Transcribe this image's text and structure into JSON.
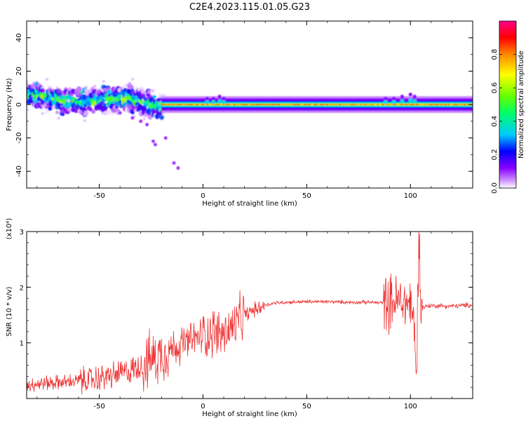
{
  "title": "C2E4.2023.115.01.05.G23",
  "chart_data": [
    {
      "type": "heatmap",
      "title": "C2E4.2023.115.01.05.G23",
      "xlabel": "Height of straight line (km)",
      "ylabel": "Frequency (Hz)",
      "xlim": [
        -85,
        130
      ],
      "ylim": [
        -50,
        50
      ],
      "x_ticks": [
        -50,
        0,
        50,
        100
      ],
      "x_tick_labels": [
        "-50",
        "0",
        "50",
        "100"
      ],
      "y_ticks": [
        -40,
        -20,
        0,
        20,
        40
      ],
      "y_tick_labels": [
        "-40",
        "-20",
        "0",
        "20",
        "40"
      ],
      "grid": false,
      "colorbar": {
        "label": "Normalized spectral amplitude",
        "range": [
          0,
          1
        ],
        "ticks": [
          0.0,
          0.2,
          0.4,
          0.6,
          0.8
        ],
        "tick_labels": [
          "0.0",
          "0.2",
          "0.4",
          "0.6",
          "0.8"
        ],
        "colormap": [
          "#ffffff",
          "#cc88ff",
          "#8800ff",
          "#0000ff",
          "#00ccff",
          "#00ff66",
          "#66ff00",
          "#ffff00",
          "#ff8800",
          "#ff0000",
          "#ff0088"
        ]
      },
      "ridge": [
        {
          "x": -85,
          "y": 6
        },
        {
          "x": -75,
          "y": 4
        },
        {
          "x": -65,
          "y": 2
        },
        {
          "x": -55,
          "y": 2
        },
        {
          "x": -45,
          "y": 3
        },
        {
          "x": -35,
          "y": 4
        },
        {
          "x": -28,
          "y": 1
        },
        {
          "x": -22,
          "y": -2
        },
        {
          "x": -20,
          "y": 0
        },
        {
          "x": 130,
          "y": 0
        }
      ]
    },
    {
      "type": "line",
      "xlabel": "Height of straight line (km)",
      "ylabel": "SNR (10 * v/v)",
      "y_exponent_label": "(x10⁴)",
      "xlim": [
        -85,
        130
      ],
      "ylim": [
        0,
        3
      ],
      "x_ticks": [
        -50,
        0,
        50,
        100
      ],
      "x_tick_labels": [
        "-50",
        "0",
        "50",
        "100"
      ],
      "y_ticks": [
        1,
        2,
        3
      ],
      "y_tick_labels": [
        "1",
        "2",
        "3"
      ],
      "grid": false,
      "color": "#ee3333",
      "series": [
        {
          "x": [
            -85,
            -75,
            -65,
            -55,
            -45,
            -35,
            -25,
            -15,
            -5,
            0,
            5,
            10,
            15,
            20,
            25,
            30,
            35,
            40,
            50,
            60,
            70,
            80,
            85,
            90,
            95,
            98,
            100,
            102,
            103,
            104,
            105,
            106,
            110,
            120,
            130
          ],
          "y": [
            0.25,
            0.28,
            0.3,
            0.33,
            0.4,
            0.5,
            0.7,
            0.9,
            1.05,
            1.15,
            1.2,
            1.15,
            1.3,
            1.5,
            1.6,
            1.68,
            1.72,
            1.73,
            1.74,
            1.74,
            1.73,
            1.73,
            1.72,
            1.73,
            1.75,
            1.7,
            1.75,
            1.2,
            0.2,
            2.6,
            1.6,
            1.65,
            1.67,
            1.66,
            1.68
          ]
        }
      ]
    }
  ]
}
